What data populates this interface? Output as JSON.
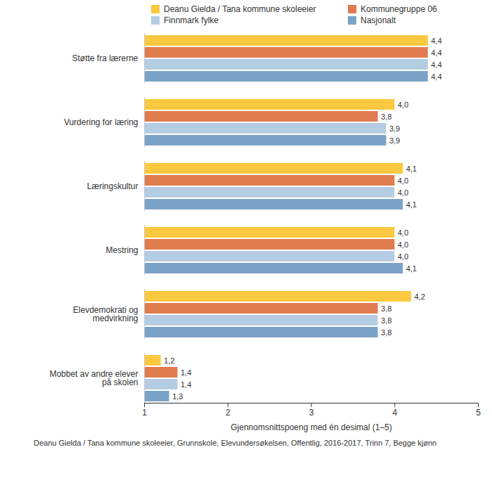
{
  "chart_data": {
    "type": "bar",
    "orientation": "horizontal",
    "categories": [
      "Støtte fra lærerne",
      "Vurdering for læring",
      "Læringskultur",
      "Mestring",
      "Elevdemokrati og medvirkning",
      "Mobbet av andre elever på skolen"
    ],
    "series": [
      {
        "name": "Deanu Gielda / Tana kommune skoleeier",
        "color": "#fcc83f",
        "values": [
          4.4,
          4.0,
          4.1,
          4.0,
          4.2,
          1.2
        ],
        "value_labels": [
          "4,4",
          "4,0",
          "4,1",
          "4,0",
          "4,2",
          "1,2"
        ]
      },
      {
        "name": "Kommunegruppe 06",
        "color": "#e07b50",
        "values": [
          4.4,
          3.8,
          4.0,
          4.0,
          3.8,
          1.4
        ],
        "value_labels": [
          "4,4",
          "3,8",
          "4,0",
          "4,0",
          "3,8",
          "1,4"
        ]
      },
      {
        "name": "Finnmark fylke",
        "color": "#b5cde2",
        "values": [
          4.4,
          3.9,
          4.0,
          4.0,
          3.8,
          1.4
        ],
        "value_labels": [
          "4,4",
          "3,9",
          "4,0",
          "4,0",
          "3,8",
          "1,4"
        ]
      },
      {
        "name": "Nasjonalt",
        "color": "#7ba3c7",
        "values": [
          4.4,
          3.9,
          4.1,
          4.1,
          3.8,
          1.3
        ],
        "value_labels": [
          "4,4",
          "3,9",
          "4,1",
          "4,1",
          "3,8",
          "1,3"
        ]
      }
    ],
    "xlabel": "Gjennomsnittspoeng med én desimal (1–5)",
    "caption": "Deanu Gielda / Tana kommune skoleeier, Grunnskole, Elevundersøkelsen, Offentlig, 2016-2017, Trinn 7, Begge kjønn",
    "xlim": [
      1,
      5
    ],
    "xticks": [
      1,
      2,
      3,
      4,
      5
    ],
    "grid": false,
    "legend": "top",
    "data_labels": true
  }
}
